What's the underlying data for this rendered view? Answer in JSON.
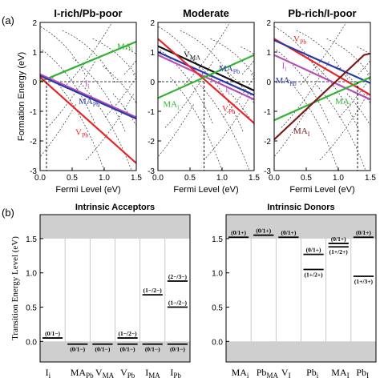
{
  "figure": {
    "part_a_label": "(a)",
    "part_b_label": "(b)",
    "colors": {
      "MA_i": "#33b233",
      "V_Pb": "#e8262a",
      "I_i": "#b84fb8",
      "MA_Pb": "#2b3aa8",
      "V_MA": "#111111",
      "MA_I": "#7a1a1a",
      "dashed": "#333333",
      "shade": "#cfcfcf"
    }
  },
  "chart_data": [
    {
      "type": "line",
      "title": "I-rich/Pb-poor",
      "xlabel": "Fermi Level (eV)",
      "ylabel": "Formation Energy (eV)",
      "xlim": [
        0,
        1.5
      ],
      "ylim": [
        -3,
        2
      ],
      "xticks": [
        "0.0",
        "0.5",
        "1.0",
        "1.5"
      ],
      "yticks": [
        "-3",
        "-2",
        "-1",
        "0",
        "1",
        "2"
      ],
      "fermi_marker": 0.1,
      "series": [
        {
          "name": "MA_i",
          "label": "MA",
          "sub": "i",
          "color_key": "MA_i",
          "points": [
            [
              0,
              0.0
            ],
            [
              1.5,
              1.35
            ]
          ],
          "label_at": [
            1.2,
            1.1
          ]
        },
        {
          "name": "I_i",
          "label": "I",
          "sub": "i",
          "color_key": "I_i",
          "points": [
            [
              0,
              0.25
            ],
            [
              1.5,
              -1.2
            ]
          ],
          "label_at": [
            0.7,
            -0.15
          ]
        },
        {
          "name": "MA_Pb",
          "label": "MA",
          "sub": "Pb",
          "color_key": "MA_Pb",
          "points": [
            [
              0,
              0.2
            ],
            [
              1.5,
              -1.25
            ]
          ],
          "label_at": [
            0.6,
            -0.75
          ]
        },
        {
          "name": "V_Pb",
          "label": "V",
          "sub": "Pb",
          "color_key": "V_Pb",
          "points": [
            [
              0,
              0.15
            ],
            [
              1.5,
              -2.75
            ]
          ],
          "label_at": [
            0.55,
            -1.8
          ]
        }
      ]
    },
    {
      "type": "line",
      "title": "Moderate",
      "xlabel": "Fermi Level (eV)",
      "xlim": [
        0,
        1.5
      ],
      "ylim": [
        -3,
        2
      ],
      "xticks": [
        "0.0",
        "0.5",
        "1.0",
        "1.5"
      ],
      "fermi_marker": 0.72,
      "series": [
        {
          "name": "V_MA",
          "label": "V",
          "sub": "MA",
          "color_key": "V_MA",
          "points": [
            [
              0,
              1.2
            ],
            [
              1.5,
              -0.3
            ]
          ],
          "label_at": [
            0.4,
            0.82
          ]
        },
        {
          "name": "MA_Pb",
          "label": "MA",
          "sub": "Pb",
          "color_key": "MA_Pb",
          "points": [
            [
              0,
              1.0
            ],
            [
              1.5,
              -0.45
            ]
          ],
          "label_at": [
            0.95,
            0.35
          ]
        },
        {
          "name": "I_i",
          "label": "I",
          "sub": "i",
          "color_key": "I_i",
          "points": [
            [
              0,
              0.9
            ],
            [
              1.5,
              -0.6
            ]
          ],
          "label_at": [
            1.05,
            -0.35
          ]
        },
        {
          "name": "V_Pb",
          "label": "V",
          "sub": "Pb",
          "color_key": "V_Pb",
          "points": [
            [
              0,
              1.45
            ],
            [
              1.5,
              -1.4
            ]
          ],
          "label_at": [
            1.0,
            -1.0
          ]
        },
        {
          "name": "MA_i",
          "label": "MA",
          "sub": "i",
          "color_key": "MA_i",
          "points": [
            [
              0,
              -0.55
            ],
            [
              1.5,
              0.9
            ]
          ],
          "label_at": [
            0.08,
            -0.85
          ]
        }
      ]
    },
    {
      "type": "line",
      "title": "Pb-rich/I-poor",
      "xlabel": "Fermi Level (eV)",
      "xlim": [
        0,
        1.5
      ],
      "ylim": [
        -3,
        2
      ],
      "xticks": [
        "0.0",
        "0.5",
        "1.0",
        "1.5"
      ],
      "fermi_marker": 1.3,
      "series": [
        {
          "name": "V_Pb",
          "label": "V",
          "sub": "Pb",
          "color_key": "V_Pb",
          "points": [
            [
              0,
              1.45
            ],
            [
              1.5,
              -0.45
            ]
          ],
          "label_at": [
            0.3,
            1.35
          ]
        },
        {
          "name": "I_i",
          "label": "I",
          "sub": "i",
          "color_key": "I_i",
          "points": [
            [
              0,
              0.9
            ],
            [
              1.5,
              -0.6
            ]
          ],
          "label_at": [
            0.12,
            0.45
          ]
        },
        {
          "name": "MA_Pb",
          "label": "MA",
          "sub": "Pb",
          "color_key": "MA_Pb",
          "points": [
            [
              0,
              1.4
            ],
            [
              1.5,
              -0.05
            ]
          ],
          "label_at": [
            0.02,
            -0.05
          ]
        },
        {
          "name": "MA_i",
          "label": "MA",
          "sub": "i",
          "color_key": "MA_i",
          "points": [
            [
              0,
              -1.3
            ],
            [
              1.5,
              0.15
            ]
          ],
          "label_at": [
            0.95,
            -0.75
          ]
        },
        {
          "name": "MA_I",
          "label": "MA",
          "sub": "I",
          "color_key": "MA_I",
          "points": [
            [
              0,
              -1.95
            ],
            [
              1.4,
              0.9
            ],
            [
              1.5,
              0.95
            ]
          ],
          "label_at": [
            0.3,
            -1.75
          ]
        }
      ]
    }
  ],
  "bottom": {
    "ylabel": "Transition Energy Level (eV)",
    "ylim": [
      -0.3,
      1.85
    ],
    "band_gap": [
      0,
      1.5
    ],
    "yticks": [
      "0.0",
      "0.5",
      "1.0",
      "1.5"
    ],
    "acceptors": {
      "title": "Intrinsic Acceptors",
      "defects": [
        {
          "name": "I",
          "sub": "i",
          "levels": [
            {
              "label": "(0/1−)",
              "e": 0.05
            }
          ]
        },
        {
          "name": "MA",
          "sub": "Pb",
          "levels": [
            {
              "label": "(0/1−)",
              "e": -0.04
            }
          ]
        },
        {
          "name": "V",
          "sub": "MA",
          "levels": [
            {
              "label": "(0/1−)",
              "e": -0.04
            }
          ]
        },
        {
          "name": "V",
          "sub": "Pb",
          "levels": [
            {
              "label": "(1−/2−)",
              "e": 0.05
            },
            {
              "label": "(0/1−)",
              "e": -0.04
            }
          ]
        },
        {
          "name": "I",
          "sub": "MA",
          "levels": [
            {
              "label": "(1−/2−)",
              "e": 0.68
            },
            {
              "label": "(0/1−)",
              "e": -0.04
            }
          ]
        },
        {
          "name": "I",
          "sub": "Pb",
          "levels": [
            {
              "label": "(2−/3−)",
              "e": 0.88
            },
            {
              "label": "(1−/2−)",
              "e": 0.5
            },
            {
              "label": "(0/1−)",
              "e": -0.04
            }
          ]
        }
      ]
    },
    "donors": {
      "title": "Intrinsic Donors",
      "defects": [
        {
          "name": "MA",
          "sub": "i",
          "levels": [
            {
              "label": "(0/1+)",
              "e": 1.52
            }
          ]
        },
        {
          "name": "Pb",
          "sub": "MA",
          "levels": [
            {
              "label": "(0/1+)",
              "e": 1.55
            }
          ]
        },
        {
          "name": "V",
          "sub": "I",
          "levels": [
            {
              "label": "(0/1+)",
              "e": 1.52
            }
          ]
        },
        {
          "name": "Pb",
          "sub": "i",
          "levels": [
            {
              "label": "(0/1+)",
              "e": 1.27
            },
            {
              "label": "(1+/2+)",
              "e": 1.05
            }
          ]
        },
        {
          "name": "MA",
          "sub": "I",
          "levels": [
            {
              "label": "(0/1+)",
              "e": 1.43
            },
            {
              "label": "(1+/2+)",
              "e": 1.38
            }
          ]
        },
        {
          "name": "Pb",
          "sub": "I",
          "levels": [
            {
              "label": "(0/1+)",
              "e": 1.52
            },
            {
              "label": "(1+/3+)",
              "e": 0.95
            }
          ]
        }
      ]
    }
  }
}
